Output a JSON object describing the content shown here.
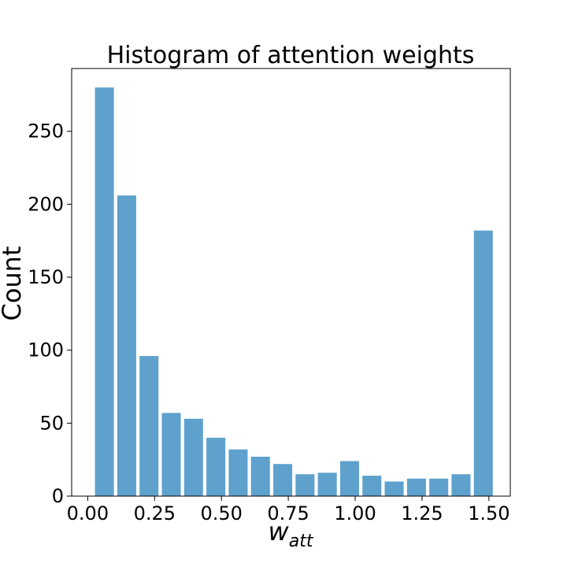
{
  "chart_data": {
    "type": "bar",
    "title": "Histogram of attention weights",
    "xlabel": "w",
    "xlabel_subscript": "att",
    "ylabel": "Count",
    "bar_color": "#5fa1cd",
    "bin_width": 0.0833,
    "x": [
      0.0625,
      0.1458,
      0.2292,
      0.3125,
      0.3958,
      0.4792,
      0.5625,
      0.6458,
      0.7292,
      0.8125,
      0.8958,
      0.9792,
      1.0625,
      1.1458,
      1.2292,
      1.3125,
      1.3958,
      1.4792
    ],
    "values": [
      280,
      206,
      96,
      57,
      53,
      40,
      32,
      27,
      22,
      15,
      16,
      24,
      14,
      10,
      12,
      12,
      15,
      182
    ],
    "xlim": [
      -0.06,
      1.58
    ],
    "ylim": [
      0,
      293
    ],
    "x_ticks": [
      0.0,
      0.25,
      0.5,
      0.75,
      1.0,
      1.25,
      1.5
    ],
    "x_tick_labels": [
      "0.00",
      "0.25",
      "0.50",
      "0.75",
      "1.00",
      "1.25",
      "1.50"
    ],
    "y_ticks": [
      0,
      50,
      100,
      150,
      200,
      250
    ],
    "y_tick_labels": [
      "0",
      "50",
      "100",
      "150",
      "200",
      "250"
    ],
    "grid": false,
    "legend": "none"
  }
}
